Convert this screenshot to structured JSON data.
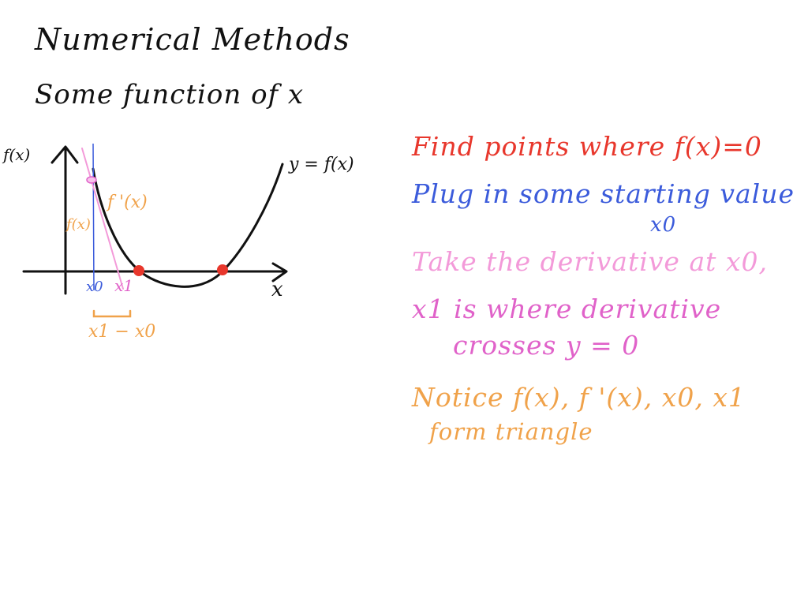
{
  "title": "Numerical Methods",
  "subtitle": "Some function of x",
  "graph": {
    "y_axis_label": "f(x)",
    "x_axis_label": "x",
    "curve_label": "y = f(x)",
    "derivative_label": "f '(x)",
    "fx_label": "f(x)",
    "x0_label": "x0",
    "x1_label": "x1",
    "difference_label": "x1 − x0"
  },
  "notes": {
    "find_points": "Find points where f(x)=0",
    "plug_in": "Plug in some starting value",
    "plug_in_value": "x0",
    "derivative": "Take the derivative at x0,",
    "x1_where": "x1 is where derivative",
    "crosses": "crosses y = 0",
    "notice": "Notice f(x), f '(x), x0, x1",
    "triangle": "form triangle"
  },
  "colors": {
    "ink": "#111111",
    "red": "#e8372c",
    "blue": "#3b5bdb",
    "light_pink": "#f39ad9",
    "magenta": "#e062c9",
    "orange": "#f0a24a"
  }
}
